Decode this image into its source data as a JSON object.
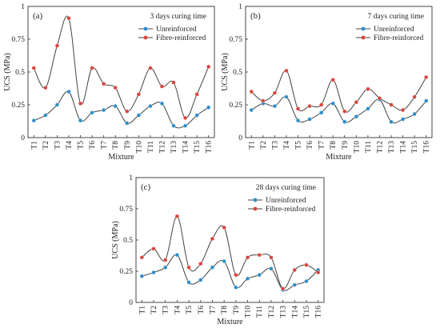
{
  "colors": {
    "unreinforced": "#2b8fc9",
    "fibre": "#d9453f",
    "line": "#444444"
  },
  "chart_data": [
    {
      "type": "line",
      "panel_label": "(a)",
      "subtitle": "3 days curing time",
      "categories": [
        "T1",
        "T2",
        "T3",
        "T4",
        "T5",
        "T6",
        "T7",
        "T8",
        "T9",
        "T10",
        "T11",
        "T12",
        "T13",
        "T14",
        "T15",
        "T16"
      ],
      "series": [
        {
          "name": "Unreinforced",
          "values": [
            0.13,
            0.17,
            0.25,
            0.35,
            0.13,
            0.19,
            0.21,
            0.24,
            0.11,
            0.17,
            0.24,
            0.26,
            0.09,
            0.09,
            0.17,
            0.23
          ]
        },
        {
          "name": "Fibre-reinforced",
          "values": [
            0.53,
            0.38,
            0.7,
            0.91,
            0.26,
            0.53,
            0.41,
            0.38,
            0.2,
            0.33,
            0.53,
            0.39,
            0.42,
            0.15,
            0.33,
            0.54
          ]
        }
      ],
      "xlabel": "Mixture",
      "ylabel": "UCS (MPa)",
      "ylim": [
        0,
        1
      ],
      "yticks": [
        "0",
        "0.25",
        "0.5",
        "0.75",
        "1"
      ],
      "legend_position": "top-right",
      "grid": false
    },
    {
      "type": "line",
      "panel_label": "(b)",
      "subtitle": "7 days curing time",
      "categories": [
        "T1",
        "T2",
        "T3",
        "T4",
        "T5",
        "T6",
        "T7",
        "T8",
        "T9",
        "T10",
        "T11",
        "T12",
        "T13",
        "T14",
        "T15",
        "T16"
      ],
      "series": [
        {
          "name": "Unreinforced",
          "values": [
            0.21,
            0.26,
            0.24,
            0.31,
            0.13,
            0.14,
            0.19,
            0.26,
            0.12,
            0.16,
            0.22,
            0.29,
            0.12,
            0.14,
            0.18,
            0.28
          ]
        },
        {
          "name": "Fibre-reinforced",
          "values": [
            0.35,
            0.28,
            0.34,
            0.51,
            0.22,
            0.24,
            0.25,
            0.44,
            0.2,
            0.27,
            0.37,
            0.3,
            0.25,
            0.21,
            0.31,
            0.46
          ]
        }
      ],
      "xlabel": "Mixture",
      "ylabel": "UCS (MPa)",
      "ylim": [
        0,
        1
      ],
      "yticks": [
        "0",
        "0.25",
        "0.5",
        "0.75",
        "1"
      ],
      "legend_position": "top-right",
      "grid": false
    },
    {
      "type": "line",
      "panel_label": "(c)",
      "subtitle": "28 days curing time",
      "categories": [
        "T1",
        "T2",
        "T3",
        "T4",
        "T5",
        "T6",
        "T7",
        "T8",
        "T9",
        "T10",
        "T11",
        "T12",
        "T13",
        "T14",
        "T15",
        "T16"
      ],
      "series": [
        {
          "name": "Unreinforced",
          "values": [
            0.21,
            0.24,
            0.28,
            0.38,
            0.16,
            0.18,
            0.28,
            0.33,
            0.12,
            0.19,
            0.22,
            0.27,
            0.1,
            0.14,
            0.17,
            0.26
          ]
        },
        {
          "name": "Fibre-reinforced",
          "values": [
            0.36,
            0.43,
            0.34,
            0.69,
            0.28,
            0.31,
            0.51,
            0.6,
            0.22,
            0.36,
            0.38,
            0.36,
            0.11,
            0.26,
            0.3,
            0.24
          ]
        }
      ],
      "xlabel": "Mixture",
      "ylabel": "UCS (MPa)",
      "ylim": [
        0,
        1
      ],
      "yticks": [
        "0",
        "0.25",
        "0.5",
        "0.75",
        "1"
      ],
      "legend_position": "top-right",
      "grid": false
    }
  ]
}
